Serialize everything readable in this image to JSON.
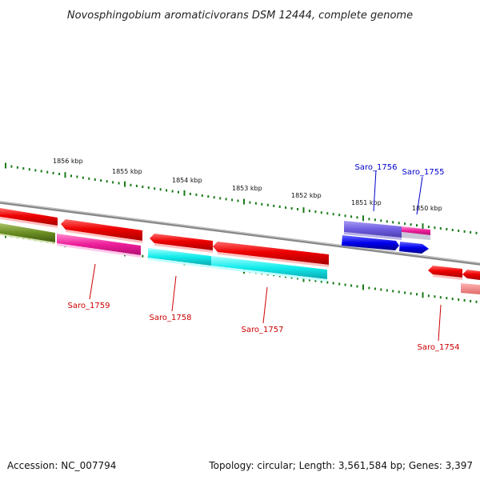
{
  "title": "Novosphingobium aromaticivorans DSM 12444, complete genome",
  "footer": {
    "accession": "Accession: NC_007794",
    "summary": "Topology: circular; Length: 3,561,584 bp; Genes: 3,397"
  },
  "kbp_labels": [
    "1856 kbp",
    "1855 kbp",
    "1854 kbp",
    "1853 kbp",
    "1852 kbp",
    "1851 kbp",
    "1850 kbp"
  ],
  "gene_labels_top": [
    "Saro_1756",
    "Saro_1755"
  ],
  "gene_labels_bottom": [
    "Saro_1759",
    "Saro_1758",
    "Saro_1757",
    "Saro_1754"
  ],
  "colors": {
    "red": "#ee0000",
    "magenta": "#ee1d9a",
    "cyan": "#13ecec",
    "olive": "#6b8e23",
    "purple": "#7b68ee",
    "blue": "#0000ee",
    "backbone": "#888888",
    "tick": "#1a7a1a",
    "label_red": "#cc0000",
    "label_blue": "#0000cc"
  }
}
